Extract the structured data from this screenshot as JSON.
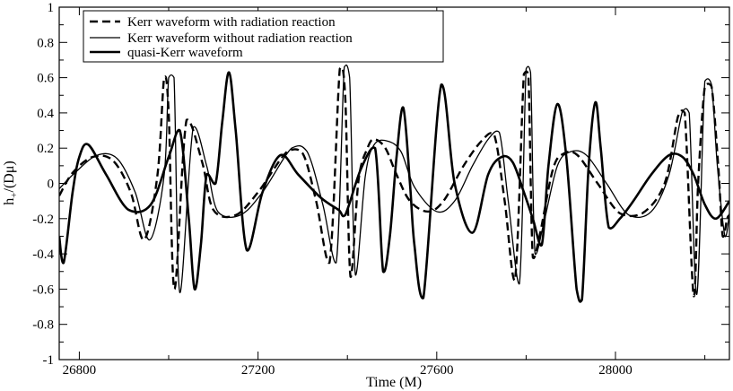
{
  "chart_data": {
    "type": "line",
    "title": "",
    "xlabel": "Time (M)",
    "ylabel": "h+/(Dμ)",
    "ylabel_main": "h",
    "ylabel_sub": "+",
    "ylabel_tail": "/(Dμ)",
    "xlim": [
      26755,
      28255
    ],
    "ylim": [
      -1,
      1
    ],
    "x_ticks": [
      26800,
      27200,
      27600,
      28000
    ],
    "x_tick_labels": [
      "26800",
      "27200",
      "27600",
      "28000"
    ],
    "y_ticks": [
      -1,
      -0.8,
      -0.6,
      -0.4,
      -0.2,
      0,
      0.2,
      0.4,
      0.6,
      0.8,
      1
    ],
    "y_tick_labels": [
      "-1",
      "-0.8",
      "-0.6",
      "-0.4",
      "-0.2",
      "0",
      "0.2",
      "0.4",
      "0.6",
      "0.8",
      "1"
    ],
    "grid": false,
    "legend_position": "top-left",
    "series": [
      {
        "name": "Kerr waveform with radiation reaction",
        "style": "dashed",
        "color": "#000000",
        "x": [
          26755,
          26785,
          26830,
          26875,
          26915,
          26945,
          26975,
          26990,
          27000,
          27013,
          27040,
          27075,
          27100,
          27150,
          27200,
          27265,
          27300,
          27330,
          27360,
          27383,
          27395,
          27407,
          27425,
          27445,
          27460,
          27485,
          27510,
          27540,
          27580,
          27615,
          27660,
          27700,
          27728,
          27752,
          27775,
          27795,
          27805,
          27815,
          27830,
          27860,
          27885,
          27915,
          27960,
          28010,
          28060,
          28110,
          28140,
          28155,
          28175,
          28185,
          28200,
          28215,
          28230,
          28240,
          28250,
          28255
        ],
        "y": [
          -0.07,
          0.06,
          0.15,
          0.13,
          -0.05,
          -0.32,
          0.05,
          0.6,
          0.4,
          -0.6,
          0.36,
          0.12,
          -0.15,
          -0.18,
          -0.05,
          0.18,
          0.17,
          -0.1,
          -0.45,
          0.65,
          0.5,
          -0.53,
          0.02,
          0.2,
          0.25,
          0.2,
          0.05,
          -0.1,
          -0.16,
          -0.1,
          0.1,
          0.24,
          0.28,
          -0.1,
          -0.55,
          0.62,
          0.62,
          -0.42,
          -0.3,
          0.08,
          0.17,
          0.16,
          0.0,
          -0.17,
          -0.17,
          0.0,
          0.38,
          0.4,
          -0.64,
          0.0,
          0.55,
          0.55,
          0.1,
          -0.3,
          -0.2,
          -0.18
        ]
      },
      {
        "name": "Kerr waveform without radiation reaction",
        "style": "solid-thin",
        "color": "#000000",
        "x": [
          26755,
          26790,
          26840,
          26885,
          26925,
          26958,
          26990,
          27000,
          27012,
          27025,
          27055,
          27085,
          27110,
          27160,
          27210,
          27275,
          27310,
          27345,
          27375,
          27393,
          27405,
          27418,
          27440,
          27460,
          27490,
          27520,
          27550,
          27600,
          27640,
          27680,
          27715,
          27740,
          27760,
          27785,
          27800,
          27810,
          27820,
          27840,
          27870,
          27900,
          27935,
          27980,
          28030,
          28080,
          28120,
          28150,
          28165,
          28182,
          28200,
          28215,
          28228,
          28245,
          28255
        ],
        "y": [
          -0.03,
          0.06,
          0.16,
          0.14,
          -0.05,
          -0.32,
          0.05,
          0.6,
          0.6,
          -0.62,
          0.32,
          0.1,
          -0.16,
          -0.18,
          -0.05,
          0.2,
          0.18,
          -0.12,
          -0.45,
          0.66,
          0.6,
          -0.52,
          0.04,
          0.22,
          0.24,
          0.18,
          -0.02,
          -0.16,
          -0.1,
          0.1,
          0.25,
          0.29,
          -0.1,
          -0.57,
          0.65,
          0.63,
          -0.4,
          -0.22,
          0.1,
          0.18,
          0.16,
          0.0,
          -0.18,
          -0.16,
          0.05,
          0.41,
          0.4,
          -0.63,
          0.58,
          0.56,
          0.1,
          -0.3,
          -0.17
        ]
      },
      {
        "name": "quasi-Kerr waveform",
        "style": "solid-thick",
        "color": "#000000",
        "x": [
          26755,
          26765,
          26785,
          26800,
          26820,
          26860,
          26910,
          26960,
          27000,
          27025,
          27045,
          27058,
          27072,
          27085,
          27105,
          27120,
          27135,
          27150,
          27175,
          27210,
          27250,
          27290,
          27340,
          27380,
          27395,
          27430,
          27462,
          27480,
          27495,
          27510,
          27525,
          27540,
          27550,
          27570,
          27610,
          27640,
          27680,
          27715,
          27745,
          27770,
          27795,
          27815,
          27835,
          27850,
          27870,
          27890,
          27913,
          27925,
          27940,
          27955,
          27967,
          27985,
          28010,
          28040,
          28080,
          28120,
          28150,
          28175,
          28200,
          28225,
          28255
        ],
        "y": [
          -0.3,
          -0.45,
          -0.05,
          0.15,
          0.22,
          0.05,
          -0.15,
          -0.12,
          0.15,
          0.3,
          -0.2,
          -0.6,
          -0.35,
          0.05,
          0.0,
          0.35,
          0.63,
          0.3,
          -0.38,
          -0.05,
          0.16,
          0.05,
          -0.08,
          -0.15,
          -0.18,
          0.08,
          0.2,
          -0.5,
          -0.3,
          0.15,
          0.43,
          0.0,
          -0.35,
          -0.65,
          0.56,
          0.0,
          -0.28,
          0.05,
          0.15,
          0.12,
          -0.05,
          -0.2,
          -0.35,
          0.1,
          0.45,
          0.15,
          -0.6,
          -0.66,
          0.1,
          0.46,
          0.2,
          -0.25,
          -0.2,
          -0.1,
          0.05,
          0.16,
          0.15,
          0.05,
          -0.12,
          -0.2,
          -0.1
        ]
      }
    ]
  }
}
